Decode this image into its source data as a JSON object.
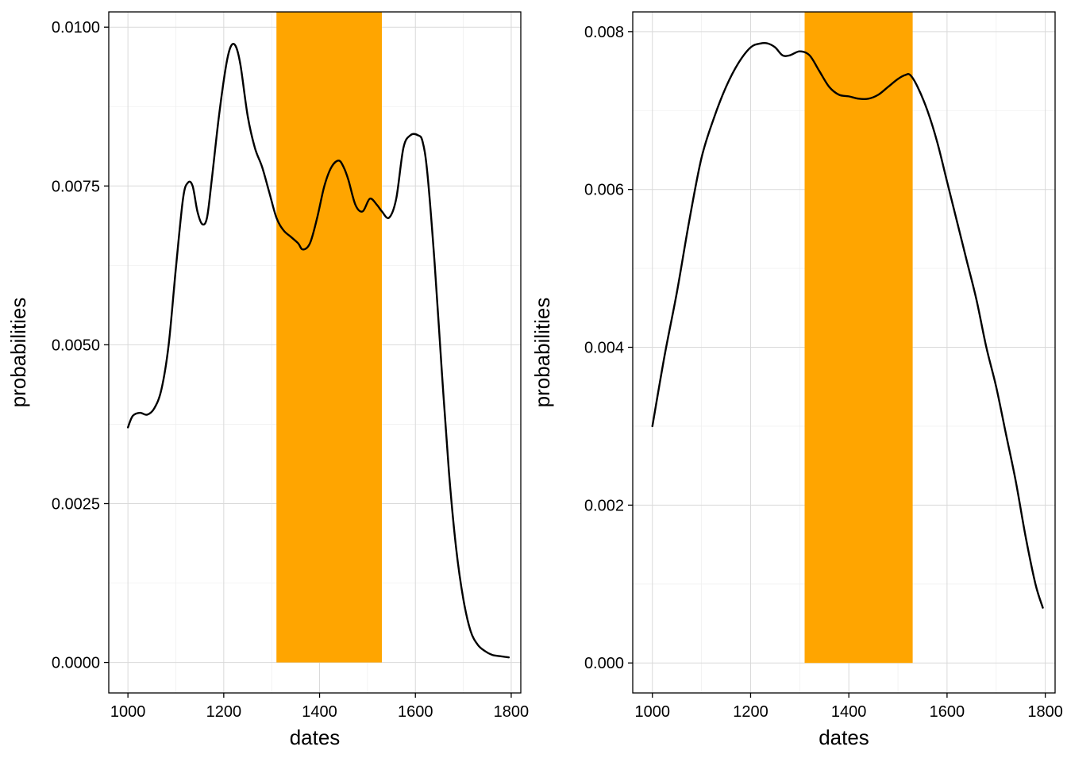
{
  "colors": {
    "band": "#FFA500",
    "line": "#000000"
  },
  "chart_data": [
    {
      "type": "line",
      "title": "",
      "xlabel": "dates",
      "ylabel": "probabilities",
      "xlim": [
        960,
        1820
      ],
      "ylim": [
        -0.00048,
        0.01024
      ],
      "x_ticks": [
        1000,
        1200,
        1400,
        1600,
        1800
      ],
      "x_tick_labels": [
        "1000",
        "1200",
        "1400",
        "1600",
        "1800"
      ],
      "y_ticks": [
        0.0,
        0.0025,
        0.005,
        0.0075,
        0.01
      ],
      "y_tick_labels": [
        "0.0000",
        "0.0025",
        "0.0050",
        "0.0075",
        "0.0100"
      ],
      "grid": true,
      "band": {
        "x0": 1310,
        "x1": 1530
      },
      "series": [
        {
          "x": [
            1000,
            1010,
            1025,
            1040,
            1055,
            1070,
            1085,
            1100,
            1115,
            1125,
            1135,
            1145,
            1155,
            1165,
            1175,
            1190,
            1205,
            1215,
            1225,
            1235,
            1250,
            1265,
            1280,
            1295,
            1310,
            1325,
            1340,
            1355,
            1365,
            1380,
            1395,
            1410,
            1425,
            1440,
            1450,
            1460,
            1475,
            1490,
            1505,
            1520,
            1530,
            1545,
            1560,
            1575,
            1590,
            1605,
            1615,
            1625,
            1640,
            1655,
            1670,
            1685,
            1700,
            1715,
            1730,
            1745,
            1760,
            1775,
            1795
          ],
          "y": [
            0.0037,
            0.00388,
            0.00393,
            0.0039,
            0.004,
            0.0043,
            0.005,
            0.0062,
            0.0073,
            0.00755,
            0.0075,
            0.0071,
            0.0069,
            0.007,
            0.0076,
            0.0086,
            0.0094,
            0.0097,
            0.0097,
            0.0094,
            0.0086,
            0.0081,
            0.0078,
            0.0074,
            0.007,
            0.0068,
            0.0067,
            0.0066,
            0.0065,
            0.0066,
            0.007,
            0.0075,
            0.0078,
            0.0079,
            0.0078,
            0.0076,
            0.0072,
            0.0071,
            0.0073,
            0.0072,
            0.0071,
            0.007,
            0.0073,
            0.0081,
            0.0083,
            0.0083,
            0.0082,
            0.0077,
            0.0063,
            0.0046,
            0.003,
            0.0018,
            0.001,
            0.0005,
            0.00028,
            0.00018,
            0.00012,
            0.0001,
            8e-05
          ]
        }
      ]
    },
    {
      "type": "line",
      "title": "",
      "xlabel": "dates",
      "ylabel": "probabilities",
      "xlim": [
        960,
        1820
      ],
      "ylim": [
        -0.00038,
        0.00825
      ],
      "x_ticks": [
        1000,
        1200,
        1400,
        1600,
        1800
      ],
      "x_tick_labels": [
        "1000",
        "1200",
        "1400",
        "1600",
        "1800"
      ],
      "y_ticks": [
        0.0,
        0.002,
        0.004,
        0.006,
        0.008
      ],
      "y_tick_labels": [
        "0.000",
        "0.002",
        "0.004",
        "0.006",
        "0.008"
      ],
      "grid": true,
      "band": {
        "x0": 1310,
        "x1": 1530
      },
      "series": [
        {
          "x": [
            1000,
            1025,
            1050,
            1075,
            1100,
            1125,
            1150,
            1175,
            1200,
            1220,
            1235,
            1250,
            1265,
            1280,
            1300,
            1320,
            1340,
            1360,
            1380,
            1400,
            1420,
            1440,
            1460,
            1480,
            1500,
            1515,
            1525,
            1540,
            1560,
            1580,
            1600,
            1620,
            1640,
            1660,
            1680,
            1700,
            1720,
            1740,
            1760,
            1780,
            1795
          ],
          "y": [
            0.003,
            0.0039,
            0.0047,
            0.0056,
            0.0064,
            0.0069,
            0.0073,
            0.0076,
            0.0078,
            0.00785,
            0.00785,
            0.0078,
            0.0077,
            0.0077,
            0.00775,
            0.0077,
            0.0075,
            0.0073,
            0.0072,
            0.00718,
            0.00715,
            0.00715,
            0.0072,
            0.0073,
            0.0074,
            0.00745,
            0.00745,
            0.0073,
            0.007,
            0.0066,
            0.0061,
            0.0056,
            0.0051,
            0.0046,
            0.004,
            0.0035,
            0.0029,
            0.0023,
            0.0016,
            0.001,
            0.0007
          ]
        }
      ]
    }
  ]
}
